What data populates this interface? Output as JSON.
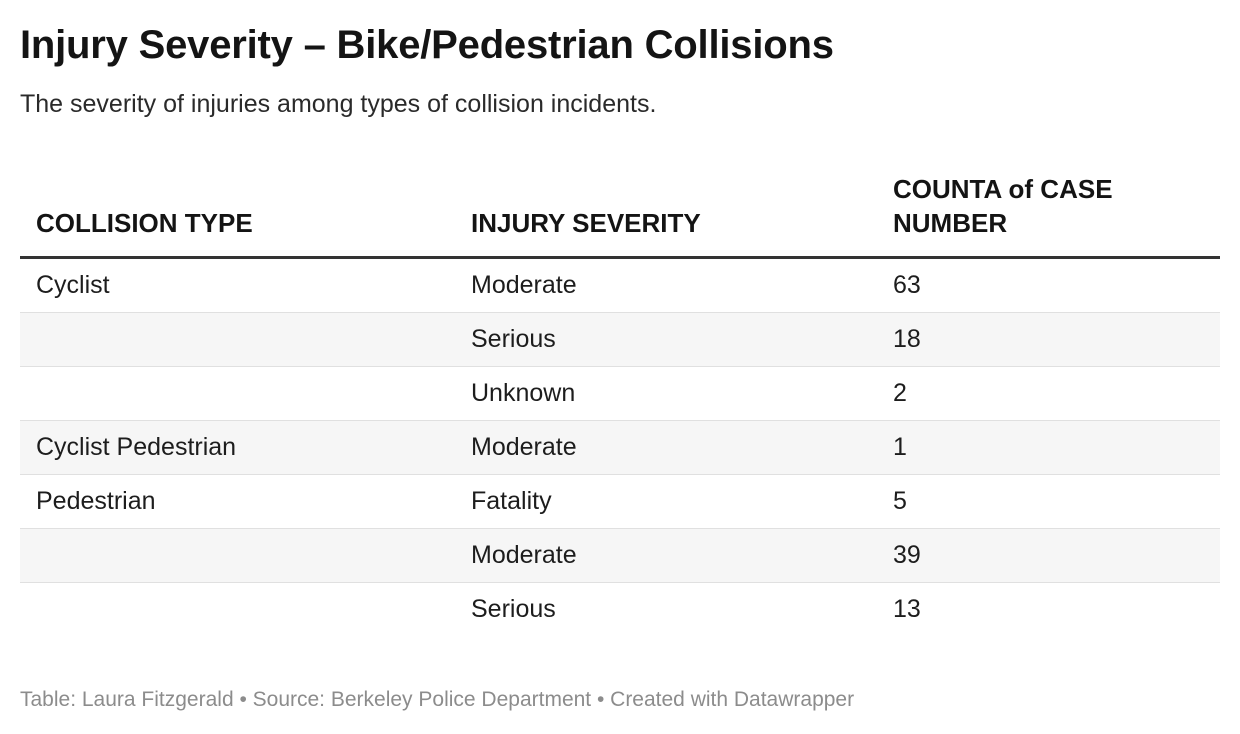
{
  "chart_data": {
    "type": "table",
    "title": "Injury Severity – Bike/Pedestrian Collisions",
    "subtitle": "The severity of injuries among types of collision incidents.",
    "columns": [
      "COLLISION TYPE",
      "INJURY SEVERITY",
      "COUNTA of CASE NUMBER"
    ],
    "rows": [
      {
        "collision_type": "Cyclist",
        "injury_severity": "Moderate",
        "count": "63"
      },
      {
        "collision_type": "",
        "injury_severity": "Serious",
        "count": "18"
      },
      {
        "collision_type": "",
        "injury_severity": "Unknown",
        "count": "2"
      },
      {
        "collision_type": "Cyclist Pedestrian",
        "injury_severity": "Moderate",
        "count": "1"
      },
      {
        "collision_type": "Pedestrian",
        "injury_severity": "Fatality",
        "count": "5"
      },
      {
        "collision_type": "",
        "injury_severity": "Moderate",
        "count": "39"
      },
      {
        "collision_type": "",
        "injury_severity": "Serious",
        "count": "13"
      }
    ],
    "footer": "Table: Laura Fitzgerald • Source: Berkeley Police Department • Created with Datawrapper"
  }
}
